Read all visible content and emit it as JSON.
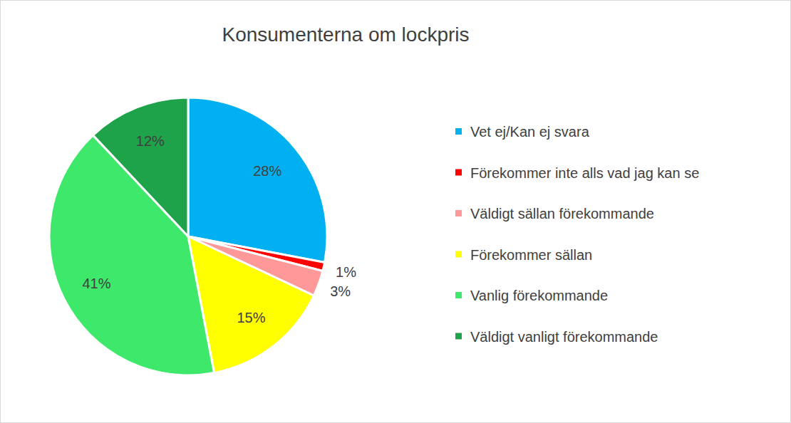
{
  "chart_data": {
    "type": "pie",
    "title": "Konsumenterna om lockpris",
    "categories": [
      "Vet ej/Kan ej svara",
      "Förekommer inte alls vad jag kan se",
      "Väldigt sällan förekommande",
      "Förekommer sällan",
      "Vanlig förekommande",
      "Väldigt vanligt förekommande"
    ],
    "values": [
      28,
      1,
      3,
      15,
      41,
      12
    ],
    "value_labels": [
      "28%",
      "1%",
      "3%",
      "15%",
      "41%",
      "12%"
    ],
    "colors": [
      "#00b0f0",
      "#ff0000",
      "#ff9999",
      "#ffff00",
      "#3de86a",
      "#1ea24a"
    ],
    "data_labels": true,
    "legend": "right"
  }
}
